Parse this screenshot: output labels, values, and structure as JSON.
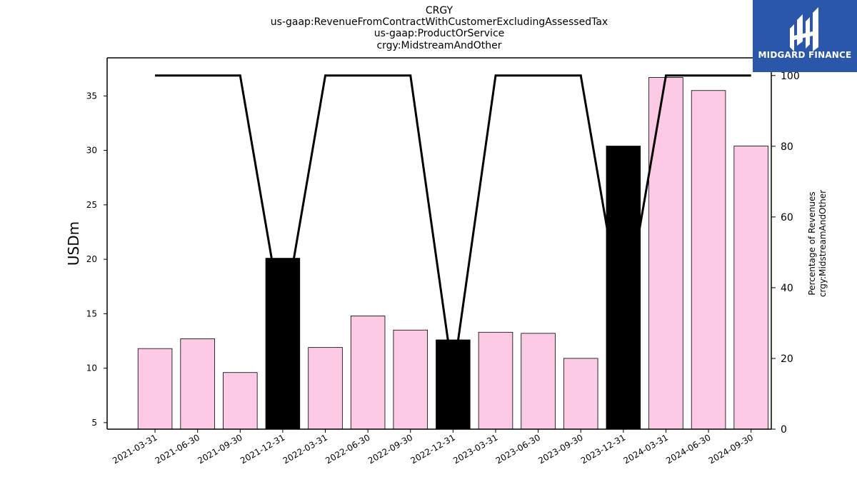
{
  "chart_data": {
    "type": "bar",
    "title": [
      "CRGY",
      "us-gaap:RevenueFromContractWithCustomerExcludingAssessedTax",
      "us-gaap:ProductOrService",
      "crgy:MidstreamAndOther"
    ],
    "ylabel": "USDm",
    "y2label": [
      "Percentage of Revenues",
      "crgy:MidstreamAndOther"
    ],
    "ylim": [
      4.4,
      38.5
    ],
    "y2lim": [
      0,
      105
    ],
    "yticks": [
      5,
      10,
      15,
      20,
      25,
      30,
      35
    ],
    "y2ticks": [
      0,
      20,
      40,
      60,
      80,
      100
    ],
    "categories": [
      "2021-03-31",
      "2021-06-30",
      "2021-09-30",
      "2021-12-31",
      "2022-03-31",
      "2022-06-30",
      "2022-09-30",
      "2022-12-31",
      "2023-03-31",
      "2023-06-30",
      "2023-09-30",
      "2023-12-31",
      "2024-03-31",
      "2024-06-30",
      "2024-09-30"
    ],
    "values": [
      11.8,
      12.7,
      9.6,
      20.1,
      11.9,
      14.8,
      13.5,
      12.6,
      13.3,
      13.2,
      10.9,
      30.4,
      36.7,
      35.5,
      30.4
    ],
    "annual": [
      false,
      false,
      false,
      true,
      false,
      false,
      false,
      true,
      false,
      false,
      false,
      true,
      false,
      false,
      false
    ],
    "percentage": [
      100,
      100,
      100,
      30,
      100,
      100,
      100,
      15,
      100,
      100,
      100,
      30,
      100,
      100,
      100
    ],
    "colors": {
      "quarter": "#fccae4",
      "annual": "#000000",
      "line": "#000000"
    },
    "grid": false
  },
  "logo": {
    "text": "MIDGARD FINANCE",
    "color": "#2b57aa"
  }
}
